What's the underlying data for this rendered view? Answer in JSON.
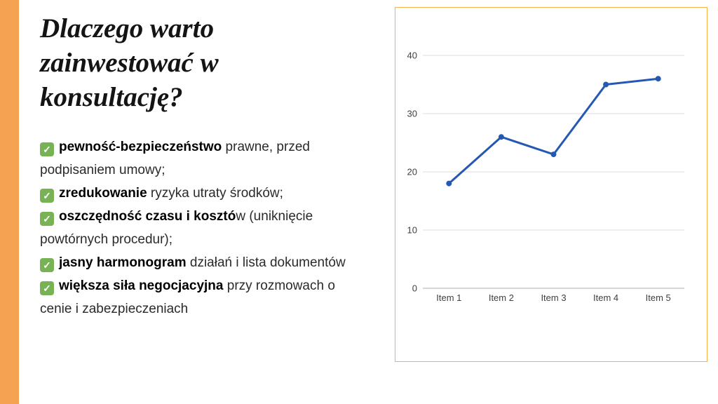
{
  "slide": {
    "title": "Dlaczego warto zainwestować w konsultację?",
    "accent_bar_color": "#F5A352",
    "check_color": "#77B255",
    "bullets": [
      {
        "icon": "check-icon",
        "bold": "pewność-bezpieczeństwo",
        "rest": " prawne, przed podpisaniem umowy;"
      },
      {
        "icon": "check-icon",
        "bold": "zredukowanie",
        "rest": " ryzyka utraty środków;"
      },
      {
        "icon": "check-icon",
        "bold": "oszczędność czasu i kosztó",
        "rest": "w (uniknięcie powtórnych procedur);"
      },
      {
        "icon": "check-icon",
        "bold": "jasny harmonogram",
        "rest": " działań i lista dokumentów"
      },
      {
        "icon": "check-icon",
        "bold": "większa siła negocjacyjna",
        "rest": " przy rozmowach o cenie i zabezpieczeniach"
      }
    ]
  },
  "chart_data": {
    "type": "line",
    "categories": [
      "Item 1",
      "Item 2",
      "Item 3",
      "Item 4",
      "Item 5"
    ],
    "values": [
      18,
      26,
      23,
      35,
      36
    ],
    "title": "",
    "xlabel": "",
    "ylabel": "",
    "ylim": [
      0,
      40
    ],
    "yticks": [
      0,
      10,
      20,
      30,
      40
    ],
    "grid": true,
    "legend": false,
    "line_color": "#2458B3",
    "marker": "circle",
    "gridline_color": "#DCDCDC",
    "axis_line_color": "#ADADAD",
    "tick_label_color": "#3F3F3F",
    "border_color": "#F9B143"
  }
}
